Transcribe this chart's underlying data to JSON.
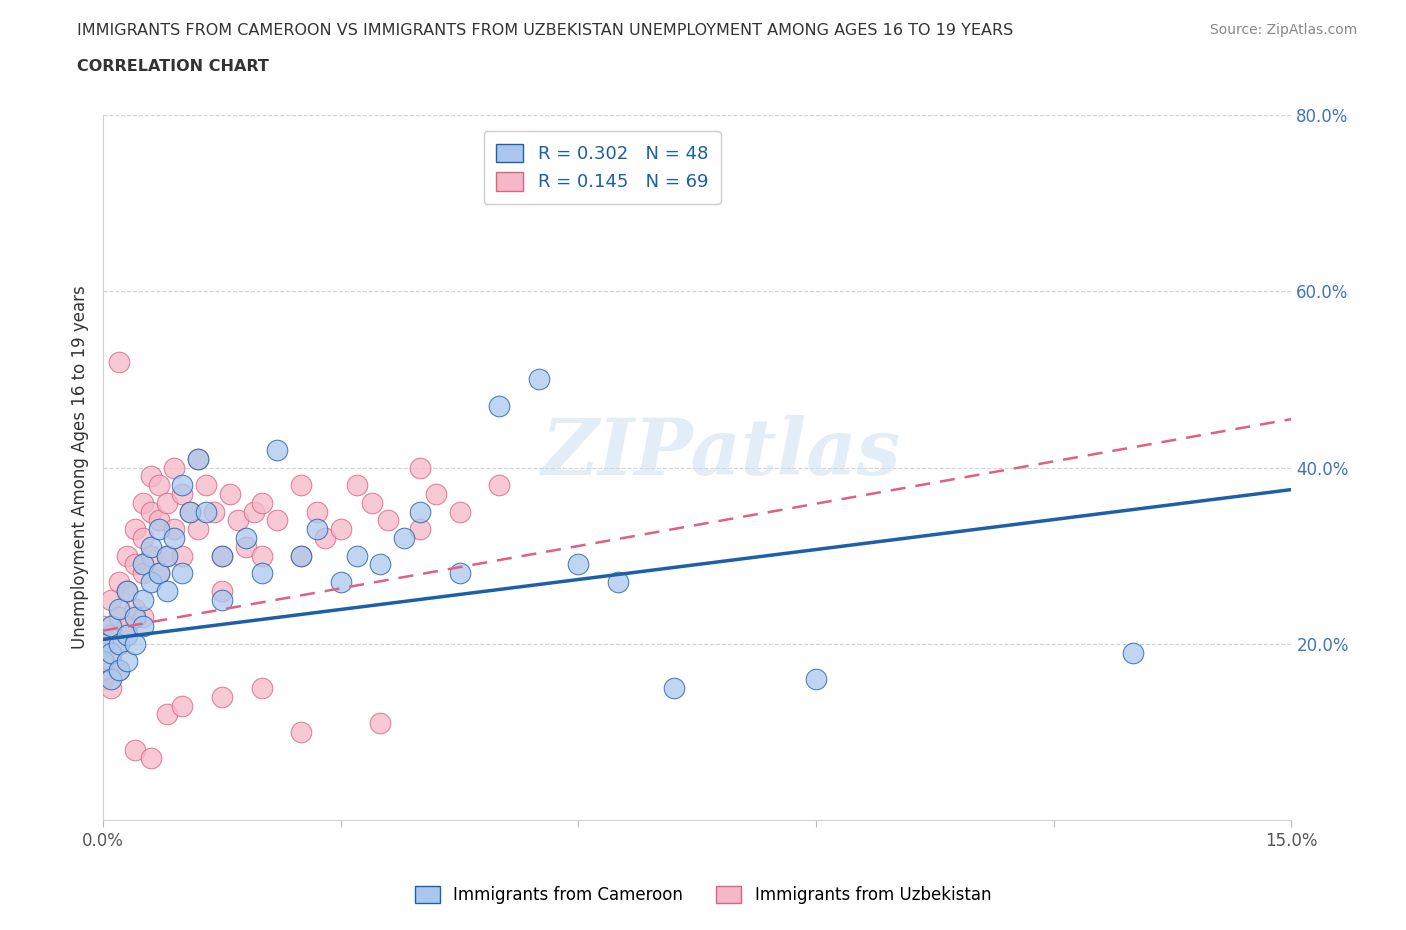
{
  "title_line1": "IMMIGRANTS FROM CAMEROON VS IMMIGRANTS FROM UZBEKISTAN UNEMPLOYMENT AMONG AGES 16 TO 19 YEARS",
  "title_line2": "CORRELATION CHART",
  "source_text": "Source: ZipAtlas.com",
  "ylabel": "Unemployment Among Ages 16 to 19 years",
  "watermark": "ZIPatlas",
  "cameroon_R": 0.302,
  "cameroon_N": 48,
  "uzbekistan_R": 0.145,
  "uzbekistan_N": 69,
  "cameroon_color": "#aac8ed",
  "cameroon_line_color": "#1f5faa",
  "uzbekistan_color": "#f4b8c8",
  "uzbekistan_line_color": "#e06080",
  "xlim": [
    0.0,
    0.15
  ],
  "ylim": [
    0.0,
    0.8
  ],
  "cam_trend_x0": 0.0,
  "cam_trend_y0": 0.205,
  "cam_trend_x1": 0.15,
  "cam_trend_y1": 0.375,
  "uzb_trend_x0": 0.0,
  "uzb_trend_y0": 0.215,
  "uzb_trend_x1": 0.15,
  "uzb_trend_y1": 0.455,
  "cam_scatter_x": [
    0.0,
    0.0,
    0.001,
    0.001,
    0.001,
    0.002,
    0.002,
    0.002,
    0.003,
    0.003,
    0.003,
    0.004,
    0.004,
    0.005,
    0.005,
    0.005,
    0.006,
    0.006,
    0.007,
    0.007,
    0.008,
    0.008,
    0.009,
    0.01,
    0.01,
    0.011,
    0.012,
    0.013,
    0.015,
    0.015,
    0.018,
    0.02,
    0.022,
    0.025,
    0.027,
    0.03,
    0.032,
    0.035,
    0.038,
    0.04,
    0.045,
    0.05,
    0.055,
    0.06,
    0.065,
    0.072,
    0.09,
    0.13
  ],
  "cam_scatter_y": [
    0.2,
    0.18,
    0.22,
    0.19,
    0.16,
    0.24,
    0.2,
    0.17,
    0.26,
    0.21,
    0.18,
    0.23,
    0.2,
    0.29,
    0.25,
    0.22,
    0.31,
    0.27,
    0.33,
    0.28,
    0.3,
    0.26,
    0.32,
    0.38,
    0.28,
    0.35,
    0.41,
    0.35,
    0.3,
    0.25,
    0.32,
    0.28,
    0.42,
    0.3,
    0.33,
    0.27,
    0.3,
    0.29,
    0.32,
    0.35,
    0.28,
    0.47,
    0.5,
    0.29,
    0.27,
    0.15,
    0.16,
    0.19
  ],
  "uzb_scatter_x": [
    0.0,
    0.0,
    0.0,
    0.001,
    0.001,
    0.001,
    0.001,
    0.002,
    0.002,
    0.002,
    0.002,
    0.003,
    0.003,
    0.003,
    0.004,
    0.004,
    0.004,
    0.005,
    0.005,
    0.005,
    0.005,
    0.006,
    0.006,
    0.006,
    0.007,
    0.007,
    0.007,
    0.008,
    0.008,
    0.009,
    0.009,
    0.01,
    0.01,
    0.011,
    0.012,
    0.012,
    0.013,
    0.014,
    0.015,
    0.015,
    0.016,
    0.017,
    0.018,
    0.019,
    0.02,
    0.02,
    0.022,
    0.025,
    0.025,
    0.027,
    0.028,
    0.03,
    0.032,
    0.034,
    0.036,
    0.04,
    0.04,
    0.042,
    0.045,
    0.05,
    0.002,
    0.004,
    0.006,
    0.008,
    0.01,
    0.015,
    0.02,
    0.025,
    0.035
  ],
  "uzb_scatter_y": [
    0.22,
    0.19,
    0.16,
    0.25,
    0.21,
    0.18,
    0.15,
    0.27,
    0.23,
    0.2,
    0.17,
    0.3,
    0.26,
    0.22,
    0.33,
    0.29,
    0.24,
    0.36,
    0.32,
    0.28,
    0.23,
    0.39,
    0.35,
    0.3,
    0.38,
    0.34,
    0.28,
    0.36,
    0.3,
    0.4,
    0.33,
    0.37,
    0.3,
    0.35,
    0.41,
    0.33,
    0.38,
    0.35,
    0.3,
    0.26,
    0.37,
    0.34,
    0.31,
    0.35,
    0.36,
    0.3,
    0.34,
    0.38,
    0.3,
    0.35,
    0.32,
    0.33,
    0.38,
    0.36,
    0.34,
    0.4,
    0.33,
    0.37,
    0.35,
    0.38,
    0.52,
    0.08,
    0.07,
    0.12,
    0.13,
    0.14,
    0.15,
    0.1,
    0.11
  ]
}
